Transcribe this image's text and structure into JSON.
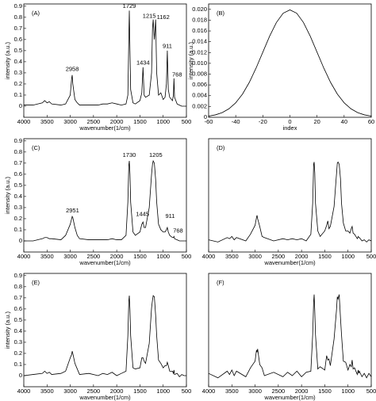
{
  "chart_data": [
    {
      "type": "line",
      "label": "(A)",
      "xlabel": "wavenumber(1/cm)",
      "ylabel": "intensity (a.u.)",
      "color": "#000000",
      "x": [
        4000,
        3800,
        3600,
        3550,
        3500,
        3450,
        3400,
        3200,
        3100,
        3000,
        2970,
        2958,
        2945,
        2900,
        2850,
        2800,
        2600,
        2400,
        2300,
        2200,
        2100,
        2000,
        1900,
        1800,
        1760,
        1740,
        1729,
        1715,
        1700,
        1650,
        1600,
        1500,
        1460,
        1434,
        1410,
        1380,
        1300,
        1250,
        1230,
        1215,
        1190,
        1162,
        1140,
        1100,
        1050,
        1000,
        960,
        930,
        911,
        890,
        860,
        800,
        780,
        768,
        755,
        700,
        650,
        600,
        550,
        500
      ],
      "values": [
        0.01,
        0.01,
        0.03,
        0.05,
        0.03,
        0.04,
        0.02,
        0.01,
        0.02,
        0.1,
        0.25,
        0.28,
        0.2,
        0.06,
        0.03,
        0.01,
        0.01,
        0.01,
        0.02,
        0.02,
        0.03,
        0.02,
        0.01,
        0.02,
        0.1,
        0.6,
        0.86,
        0.5,
        0.15,
        0.03,
        0.02,
        0.05,
        0.12,
        0.35,
        0.1,
        0.08,
        0.1,
        0.3,
        0.7,
        0.78,
        0.6,
        0.78,
        0.3,
        0.1,
        0.12,
        0.06,
        0.08,
        0.2,
        0.5,
        0.15,
        0.08,
        0.05,
        0.1,
        0.25,
        0.08,
        0.02,
        0.01,
        0,
        0,
        0
      ],
      "xlim": [
        4000,
        500
      ],
      "xticks": [
        4000,
        3500,
        3000,
        2500,
        2000,
        1500,
        1000,
        500
      ],
      "ylim": [
        -0.1,
        0.92
      ],
      "yticks": [
        0,
        0.1,
        0.2,
        0.3,
        0.4,
        0.5,
        0.6,
        0.7,
        0.8,
        0.9
      ],
      "annotations": [
        {
          "text": "2958",
          "x": 2958,
          "y": 0.33
        },
        {
          "text": "1729",
          "x": 1729,
          "y": 0.9
        },
        {
          "text": "1434",
          "x": 1434,
          "y": 0.39
        },
        {
          "text": "1215",
          "x": 1300,
          "y": 0.81
        },
        {
          "text": "1162",
          "x": 1000,
          "y": 0.8
        },
        {
          "text": "911",
          "x": 911,
          "y": 0.54
        },
        {
          "text": "768",
          "x": 700,
          "y": 0.28
        }
      ]
    },
    {
      "type": "line",
      "label": "(B)",
      "xlabel": "index",
      "ylabel": "intensity (a.u.)",
      "color": "#000000",
      "x": [
        -60,
        -55,
        -50,
        -45,
        -40,
        -35,
        -30,
        -25,
        -20,
        -15,
        -10,
        -5,
        0,
        5,
        10,
        15,
        20,
        25,
        30,
        35,
        40,
        45,
        50,
        55,
        60
      ],
      "values": [
        0.00022,
        0.00045,
        0.00087,
        0.00158,
        0.00269,
        0.0043,
        0.00646,
        0.00911,
        0.01207,
        0.01502,
        0.01756,
        0.01929,
        0.0199,
        0.01929,
        0.01756,
        0.01502,
        0.01207,
        0.00911,
        0.00646,
        0.0043,
        0.00269,
        0.00158,
        0.00087,
        0.00045,
        0.00022
      ],
      "xlim": [
        -60,
        60
      ],
      "xticks": [
        -60,
        -40,
        -20,
        0,
        20,
        40,
        60
      ],
      "ylim": [
        0,
        0.021
      ],
      "yticks": [
        0,
        0.002,
        0.004,
        0.006,
        0.008,
        {
          "value": 0.01,
          "label": "0.010"
        },
        0.012,
        0.014,
        0.016,
        0.018,
        {
          "value": 0.02,
          "label": "0.020"
        }
      ]
    },
    {
      "type": "line",
      "label": "(C)",
      "xlabel": "wavenumber(1/cm)",
      "ylabel": "intensity (a.u.)",
      "color": "#000000",
      "x": [
        4000,
        3800,
        3600,
        3550,
        3500,
        3450,
        3400,
        3200,
        3100,
        3000,
        2970,
        2958,
        2945,
        2900,
        2850,
        2800,
        2600,
        2400,
        2300,
        2200,
        2100,
        2000,
        1900,
        1800,
        1760,
        1740,
        1729,
        1715,
        1700,
        1650,
        1600,
        1500,
        1460,
        1434,
        1410,
        1380,
        1300,
        1250,
        1230,
        1215,
        1190,
        1162,
        1140,
        1100,
        1050,
        1000,
        960,
        930,
        911,
        890,
        860,
        800,
        780,
        768,
        755,
        700,
        650,
        600,
        550,
        500
      ],
      "values": [
        0,
        0,
        0.02,
        0.03,
        0.03,
        0.02,
        0.02,
        0.01,
        0.05,
        0.15,
        0.2,
        0.22,
        0.21,
        0.12,
        0.05,
        0.02,
        0.01,
        0.01,
        0.01,
        0.01,
        0.02,
        0.01,
        0.01,
        0.05,
        0.35,
        0.68,
        0.72,
        0.6,
        0.35,
        0.08,
        0.05,
        0.08,
        0.15,
        0.17,
        0.12,
        0.12,
        0.3,
        0.6,
        0.69,
        0.72,
        0.7,
        0.55,
        0.35,
        0.15,
        0.1,
        0.08,
        0.08,
        0.1,
        0.12,
        0.08,
        0.05,
        0.03,
        0.03,
        0.04,
        0.02,
        0.01,
        0,
        0,
        0,
        0
      ],
      "xlim": [
        4000,
        500
      ],
      "xticks": [
        4000,
        3500,
        3000,
        2500,
        2000,
        1500,
        1000,
        500
      ],
      "ylim": [
        -0.1,
        0.92
      ],
      "yticks": [
        0,
        0.1,
        0.2,
        0.3,
        0.4,
        0.5,
        0.6,
        0.7,
        0.8,
        0.9
      ],
      "annotations": [
        {
          "text": "2951",
          "x": 2951,
          "y": 0.27
        },
        {
          "text": "1730",
          "x": 1730,
          "y": 0.77
        },
        {
          "text": "1205",
          "x": 1160,
          "y": 0.77
        },
        {
          "text": "1445",
          "x": 1445,
          "y": 0.24
        },
        {
          "text": "911",
          "x": 850,
          "y": 0.22
        },
        {
          "text": "768",
          "x": 680,
          "y": 0.09
        }
      ]
    },
    {
      "type": "line",
      "label": "(D)",
      "xlabel": "wavenumber(1/cm)",
      "color": "#000000",
      "x": [
        4000,
        3800,
        3600,
        3550,
        3500,
        3450,
        3400,
        3200,
        3100,
        3000,
        2970,
        2958,
        2945,
        2900,
        2850,
        2800,
        2600,
        2400,
        2300,
        2200,
        2100,
        2000,
        1900,
        1800,
        1760,
        1740,
        1729,
        1715,
        1700,
        1650,
        1600,
        1500,
        1460,
        1434,
        1410,
        1380,
        1300,
        1250,
        1230,
        1215,
        1190,
        1162,
        1140,
        1100,
        1050,
        1000,
        960,
        930,
        911,
        890,
        860,
        800,
        780,
        768,
        755,
        700,
        650,
        600,
        550,
        500
      ],
      "values": [
        0.01,
        -0.01,
        0.03,
        0.02,
        0.04,
        0.01,
        0.03,
        0,
        0.06,
        0.14,
        0.21,
        0.23,
        0.2,
        0.13,
        0.04,
        0.03,
        0,
        0.02,
        0.01,
        0.02,
        0.01,
        0.02,
        0,
        0.06,
        0.34,
        0.69,
        0.71,
        0.61,
        0.34,
        0.09,
        0.04,
        0.09,
        0.14,
        0.18,
        0.11,
        0.13,
        0.31,
        0.59,
        0.7,
        0.71,
        0.69,
        0.56,
        0.34,
        0.16,
        0.09,
        0.09,
        0.07,
        0.11,
        0.13,
        0.07,
        0.06,
        0.02,
        0.04,
        0.03,
        0.03,
        0,
        0.01,
        -0.01,
        0.01,
        0
      ],
      "xlim": [
        4000,
        500
      ],
      "xticks": [
        4000,
        3500,
        3000,
        2500,
        2000,
        1500,
        1000,
        500
      ],
      "ylim": [
        -0.1,
        0.92
      ]
    },
    {
      "type": "line",
      "label": "(E)",
      "xlabel": "wavenumber(1/cm)",
      "ylabel": "intensity (a.u.)",
      "color": "#000000",
      "x": [
        4000,
        3800,
        3600,
        3550,
        3500,
        3450,
        3400,
        3200,
        3100,
        3000,
        2970,
        2958,
        2945,
        2900,
        2850,
        2800,
        2600,
        2400,
        2300,
        2200,
        2100,
        2000,
        1900,
        1800,
        1760,
        1740,
        1729,
        1715,
        1700,
        1650,
        1600,
        1500,
        1460,
        1434,
        1410,
        1380,
        1300,
        1250,
        1230,
        1215,
        1190,
        1162,
        1140,
        1100,
        1050,
        1000,
        960,
        930,
        911,
        890,
        860,
        800,
        780,
        768,
        755,
        700,
        650,
        600,
        550,
        500
      ],
      "values": [
        0,
        0.01,
        0.02,
        0.04,
        0.02,
        0.03,
        0.01,
        0.02,
        0.04,
        0.16,
        0.19,
        0.22,
        0.2,
        0.11,
        0.06,
        0.01,
        0.02,
        0,
        0.02,
        0.01,
        0.03,
        0,
        0.02,
        0.04,
        0.36,
        0.67,
        0.72,
        0.59,
        0.36,
        0.07,
        0.06,
        0.07,
        0.16,
        0.16,
        0.13,
        0.11,
        0.29,
        0.61,
        0.68,
        0.72,
        0.71,
        0.54,
        0.36,
        0.14,
        0.11,
        0.07,
        0.09,
        0.09,
        0.12,
        0.09,
        0.04,
        0.04,
        0.02,
        0.05,
        0.01,
        0.02,
        -0.01,
        0.01,
        0,
        0
      ],
      "xlim": [
        4000,
        500
      ],
      "xticks": [
        4000,
        3500,
        3000,
        2500,
        2000,
        1500,
        1000,
        500
      ],
      "ylim": [
        -0.1,
        0.92
      ],
      "yticks": [
        0,
        0.1,
        0.2,
        0.3,
        0.4,
        0.5,
        0.6,
        0.7,
        0.8,
        0.9
      ]
    },
    {
      "type": "line",
      "label": "(F)",
      "xlabel": "wavenumber(1/cm)",
      "color": "#000000",
      "x": [
        4000,
        3800,
        3600,
        3550,
        3500,
        3450,
        3400,
        3200,
        3100,
        3000,
        2970,
        2958,
        2945,
        2900,
        2850,
        2800,
        2600,
        2400,
        2300,
        2200,
        2100,
        2000,
        1900,
        1800,
        1760,
        1740,
        1729,
        1715,
        1700,
        1650,
        1600,
        1500,
        1460,
        1434,
        1410,
        1380,
        1300,
        1250,
        1230,
        1215,
        1190,
        1162,
        1140,
        1100,
        1050,
        1000,
        960,
        930,
        911,
        890,
        860,
        800,
        780,
        768,
        755,
        700,
        650,
        600,
        550,
        500
      ],
      "values": [
        0.02,
        -0.02,
        0.04,
        0.01,
        0.05,
        0,
        0.04,
        -0.01,
        0.07,
        0.13,
        0.23,
        0.21,
        0.24,
        0.1,
        0.07,
        0,
        0.03,
        -0.01,
        0.03,
        0,
        0.04,
        -0.01,
        0.03,
        0.04,
        0.37,
        0.66,
        0.73,
        0.58,
        0.37,
        0.06,
        0.08,
        0.05,
        0.18,
        0.14,
        0.15,
        0.09,
        0.33,
        0.58,
        0.71,
        0.69,
        0.73,
        0.52,
        0.37,
        0.13,
        0.12,
        0.05,
        0.1,
        0.08,
        0.14,
        0.06,
        0.07,
        0.01,
        0.05,
        0.02,
        0.04,
        -0.01,
        0.02,
        -0.02,
        0.02,
        -0.01
      ],
      "xlim": [
        4000,
        500
      ],
      "xticks": [
        4000,
        3500,
        3000,
        2500,
        2000,
        1500,
        1000,
        500
      ],
      "ylim": [
        -0.1,
        0.92
      ]
    }
  ]
}
